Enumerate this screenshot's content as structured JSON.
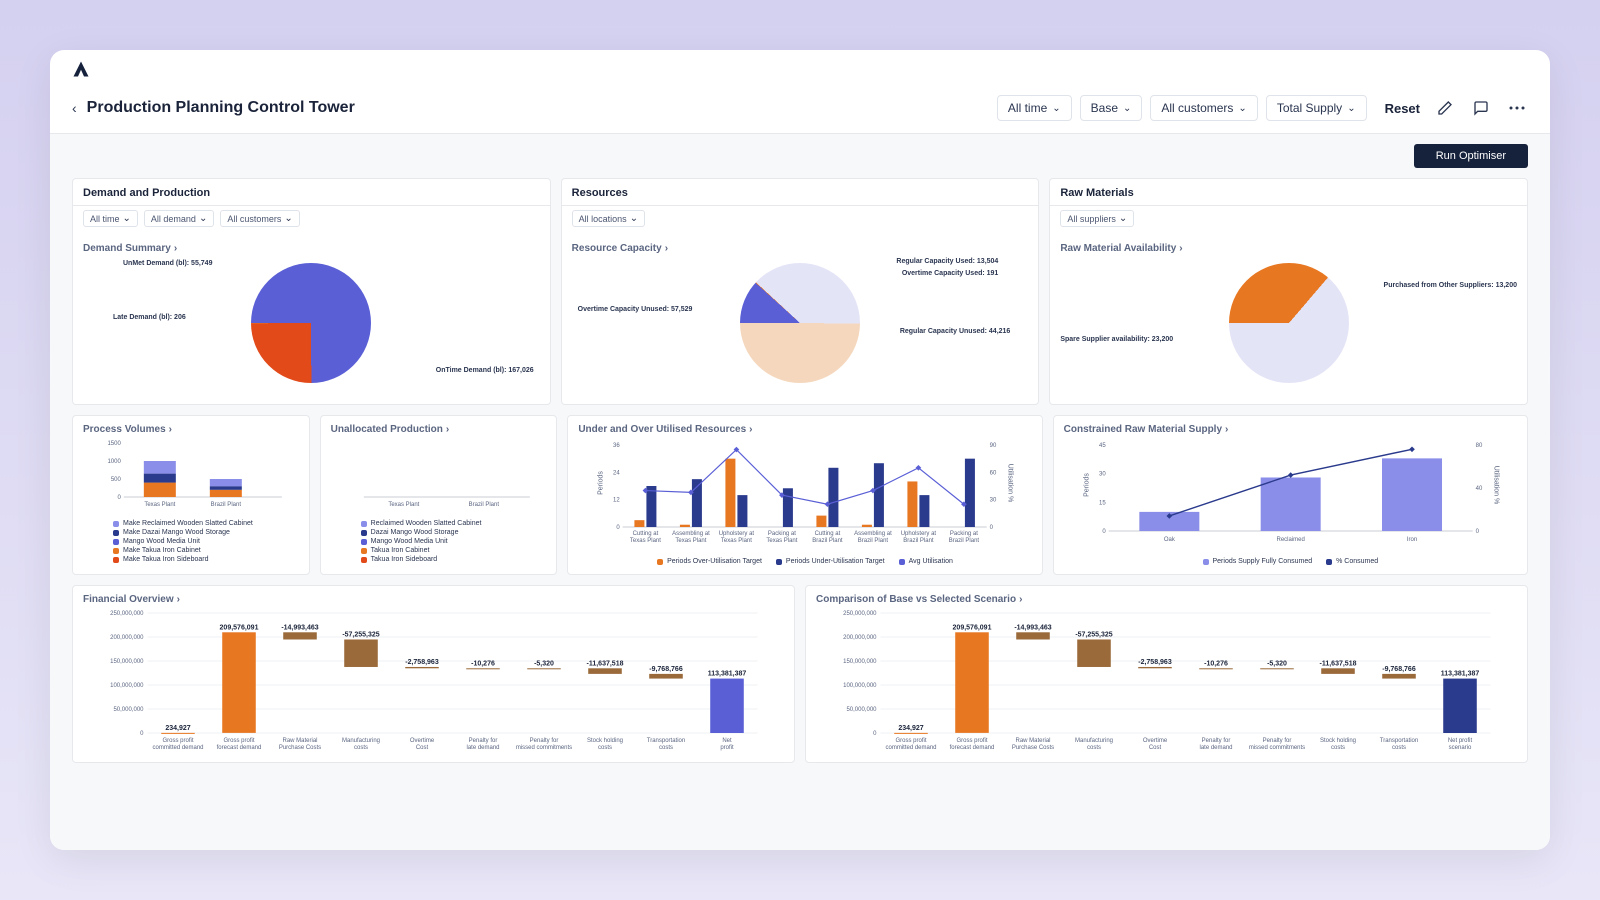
{
  "header": {
    "title": "Production Planning Control Tower",
    "filters": {
      "time": "All time",
      "scenario": "Base",
      "customers": "All customers",
      "supply": "Total Supply"
    },
    "reset": "Reset",
    "run_btn": "Run Optimiser"
  },
  "colors": {
    "blue": "#5a5fd6",
    "orange": "#e87722",
    "darkblue": "#2a3a8c",
    "lightorange": "#f5d7bd",
    "lightlav": "#e4e4f7",
    "brown": "#9a6a3a",
    "navy": "#16213b"
  },
  "sections": {
    "demand": {
      "title": "Demand and Production",
      "filters": [
        "All time",
        "All demand",
        "All customers"
      ]
    },
    "resources": {
      "title": "Resources",
      "filters": [
        "All locations"
      ]
    },
    "raw": {
      "title": "Raw Materials",
      "filters": [
        "All suppliers"
      ]
    }
  },
  "demand_summary": {
    "title": "Demand Summary",
    "slices": [
      {
        "label": "OnTime Demand (bl): 167,026",
        "value": 167026,
        "color": "#5a5fd6"
      },
      {
        "label": "UnMet Demand (bl): 55,749",
        "value": 55749,
        "color": "#e24a1a"
      },
      {
        "label": "Late Demand (bl): 206",
        "value": 206,
        "color": "#e87722"
      }
    ]
  },
  "resource_capacity": {
    "title": "Resource Capacity",
    "slices": [
      {
        "label": "Regular Capacity Used: 13,504",
        "value": 13504,
        "color": "#5a5fd6"
      },
      {
        "label": "Overtime Capacity Used: 191",
        "value": 191,
        "color": "#e87722"
      },
      {
        "label": "Regular Capacity Unused: 44,216",
        "value": 44216,
        "color": "#e4e4f7"
      },
      {
        "label": "Overtime Capacity Unused: 57,529",
        "value": 57529,
        "color": "#f5d7bd"
      }
    ]
  },
  "raw_avail": {
    "title": "Raw Material Availability",
    "slices": [
      {
        "label": "Purchased from Other Suppliers: 13,200",
        "value": 13200,
        "color": "#e87722"
      },
      {
        "label": "Spare Supplier availability: 23,200",
        "value": 23200,
        "color": "#e4e4f7"
      }
    ]
  },
  "process_volumes": {
    "title": "Process Volumes",
    "ymax": 1500,
    "yticks": [
      0,
      500,
      1000,
      1500
    ],
    "categories": [
      "Texas Plant",
      "Brazil Plant"
    ],
    "stacks": [
      [
        {
          "v": 400,
          "c": "#e87722"
        },
        {
          "v": 250,
          "c": "#2a3a8c"
        },
        {
          "v": 350,
          "c": "#8a8ee8"
        }
      ],
      [
        {
          "v": 200,
          "c": "#e87722"
        },
        {
          "v": 100,
          "c": "#2a3a8c"
        },
        {
          "v": 200,
          "c": "#8a8ee8"
        }
      ]
    ],
    "legend": [
      {
        "c": "#8a8ee8",
        "t": "Make Reclaimed Wooden Slatted Cabinet"
      },
      {
        "c": "#2a3a8c",
        "t": "Make Dazai Mango Wood Storage"
      },
      {
        "c": "#5a5fd6",
        "t": "Mango Wood Media Unit"
      },
      {
        "c": "#e87722",
        "t": "Make Takua Iron Cabinet"
      },
      {
        "c": "#e24a1a",
        "t": "Make Takua Iron Sideboard"
      }
    ]
  },
  "unallocated": {
    "title": "Unallocated Production",
    "categories": [
      "Texas Plant",
      "Brazil Plant"
    ],
    "legend": [
      {
        "c": "#8a8ee8",
        "t": "Reclaimed Wooden Slatted Cabinet"
      },
      {
        "c": "#2a3a8c",
        "t": "Dazai Mango Wood Storage"
      },
      {
        "c": "#5a5fd6",
        "t": "Mango Wood Media Unit"
      },
      {
        "c": "#e87722",
        "t": "Takua Iron Cabinet"
      },
      {
        "c": "#e24a1a",
        "t": "Takua Iron Sideboard"
      }
    ]
  },
  "under_over": {
    "title": "Under and Over Utilised Resources",
    "ylabel": "Periods",
    "y2label": "Utilisation %",
    "ymax": 36,
    "yticks": [
      0,
      12,
      24,
      36
    ],
    "y2max": 90,
    "y2ticks": [
      0,
      30,
      60,
      90
    ],
    "categories": [
      "Cutting at Texas Plant",
      "Assembling at Texas Plant",
      "Upholstery at Texas Plant",
      "Packing at Texas Plant",
      "Cutting at Brazil Plant",
      "Assembling at Brazil Plant",
      "Upholstery at Brazil Plant",
      "Packing at Brazil Plant"
    ],
    "over": [
      3,
      1,
      30,
      0,
      5,
      1,
      20,
      0
    ],
    "under": [
      18,
      21,
      14,
      17,
      26,
      28,
      14,
      30
    ],
    "avg": [
      40,
      38,
      85,
      35,
      25,
      40,
      65,
      25
    ],
    "legend": [
      {
        "c": "#e87722",
        "t": "Periods Over-Utilisation Target"
      },
      {
        "c": "#2a3a8c",
        "t": "Periods Under-Utilisation Target"
      },
      {
        "c": "#5a5fd6",
        "t": "Avg Utilisation"
      }
    ]
  },
  "constrained": {
    "title": "Constrained Raw Material Supply",
    "ylabel": "Periods",
    "y2label": "Utilisation %",
    "ymax": 45,
    "yticks": [
      0,
      15,
      30,
      45
    ],
    "y2max": 80,
    "y2ticks": [
      0,
      40,
      80
    ],
    "categories": [
      "Oak",
      "Reclaimed",
      "Iron"
    ],
    "bars": [
      10,
      28,
      38
    ],
    "line": [
      14,
      52,
      76
    ],
    "legend": [
      {
        "c": "#8a8ee8",
        "t": "Periods Supply Fully Consumed"
      },
      {
        "c": "#2a3a8c",
        "t": "% Consumed"
      }
    ]
  },
  "financial": {
    "title": "Financial Overview",
    "ymax": 250000000,
    "yticks": [
      0,
      50000000,
      100000000,
      150000000,
      200000000,
      250000000
    ],
    "categories": [
      "Gross profit committed demand",
      "Gross profit forecast demand",
      "Raw Material Purchase Costs",
      "Manufacturing costs",
      "Overtime Cost",
      "Penalty for late demand",
      "Penalty for missed commitments",
      "Stock holding costs",
      "Transportation costs",
      "Net profit"
    ],
    "values": [
      234927,
      209576091,
      -14993463,
      -57255325,
      -2758963,
      -10276,
      -5320,
      -11637518,
      -9768766,
      113381387
    ],
    "labels": [
      "234,927",
      "209,576,091",
      "-14,993,463",
      "-57,255,325",
      "-2,758,963",
      "-10,276",
      "-5,320",
      "-11,637,518",
      "-9,768,766",
      "113,381,387"
    ],
    "final_color": "#5a5fd6"
  },
  "comparison": {
    "title": "Comparison of Base vs Selected Scenario",
    "categories": [
      "Gross profit committed demand",
      "Gross profit forecast demand",
      "Raw Material Purchase Costs",
      "Manufacturing costs",
      "Overtime Cost",
      "Penalty for late demand",
      "Penalty for missed commitments",
      "Stock holding costs",
      "Transportation costs",
      "Net profit scenario"
    ],
    "values": [
      234927,
      209576091,
      -14993463,
      -57255325,
      -2758963,
      -10276,
      -5320,
      -11637518,
      -9768766,
      113381387
    ],
    "labels": [
      "234,927",
      "209,576,091",
      "-14,993,463",
      "-57,255,325",
      "-2,758,963",
      "-10,276",
      "-5,320",
      "-11,637,518",
      "-9,768,766",
      "113,381,387"
    ],
    "final_color": "#2a3a8c"
  }
}
